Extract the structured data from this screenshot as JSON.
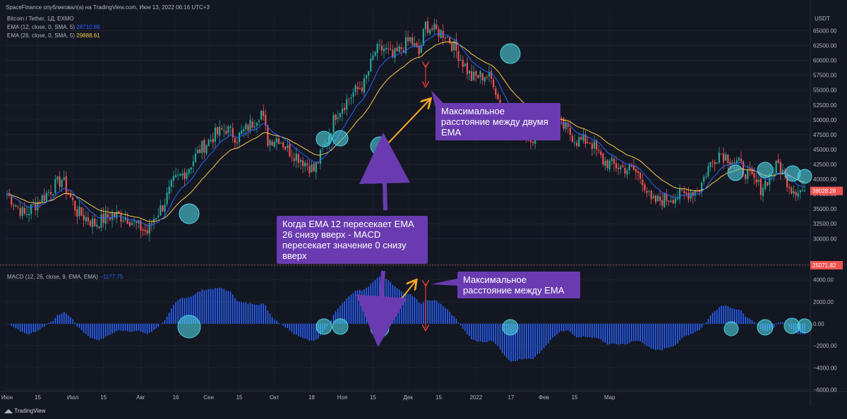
{
  "header": {
    "publisher": "SpaceFinance опубликовал(а) на TradingView.com, Июн 13, 2022 06:16 UTC+3",
    "symbol": "Bitcoin / Tether, 1Д, EXMO",
    "ema12_label": "EMA (12, close, 0, SMA, 5)",
    "ema12_value": "28710.86",
    "ema26_label": "EMA (26, close, 0, SMA, 5)",
    "ema26_value": "29888.61",
    "macd_label": "MACD (12, 26, close, 9, EMA, EMA)",
    "macd_value": "−1177.75"
  },
  "footer": {
    "logo_text": "TradingView"
  },
  "callouts": {
    "ema_cross": "Когда EMA 12 пересекает EMA 26 снизу вверх - MACD пересекает значение 0 снизу вверх",
    "max_distance_price": "Максимальное расстояние между двумя EMA",
    "max_distance_macd": "Максимальное расстояние между EMA"
  },
  "colors": {
    "background": "#131722",
    "up_candle": "#26a69a",
    "down_candle": "#ef5350",
    "ema12": "#2962ff",
    "ema26": "#f7c948",
    "macd_hist": "#2962ff",
    "callout": "#6a3bb0",
    "arrow": "#f5a623",
    "highlight": "#4fd1e0"
  },
  "chart_data": [
    {
      "type": "candlestick",
      "title": "Bitcoin / Tether, 1Д, EXMO",
      "currency": "USDT",
      "y_ticks": [
        30000,
        32500,
        35000,
        37500,
        40000,
        42500,
        45000,
        47500,
        50000,
        52500,
        55000,
        57500,
        60000,
        62500,
        65000
      ],
      "ylim": [
        26000,
        68500
      ],
      "x_ticks": [
        "Июн",
        "15",
        "Июл",
        "15",
        "Авг",
        "16",
        "Сен",
        "15",
        "Окт",
        "18",
        "Ноя",
        "15",
        "Дек",
        "15",
        "2022",
        "17",
        "Фев",
        "15",
        "Мар"
      ],
      "last_price_label": "38028.28",
      "crosshair_label": "25071.82",
      "close_anchors": [
        [
          0,
          37500
        ],
        [
          8,
          34000
        ],
        [
          15,
          36500
        ],
        [
          25,
          40000
        ],
        [
          32,
          34500
        ],
        [
          40,
          32500
        ],
        [
          48,
          34000
        ],
        [
          55,
          33500
        ],
        [
          60,
          32000
        ],
        [
          64,
          31000
        ],
        [
          67,
          33500
        ],
        [
          71,
          35500
        ],
        [
          76,
          39500
        ],
        [
          82,
          41500
        ],
        [
          88,
          45000
        ],
        [
          95,
          47500
        ],
        [
          100,
          48500
        ],
        [
          105,
          47000
        ],
        [
          112,
          49500
        ],
        [
          116,
          51500
        ],
        [
          119,
          46500
        ],
        [
          124,
          47000
        ],
        [
          128,
          45000
        ],
        [
          134,
          43500
        ],
        [
          140,
          41500
        ],
        [
          145,
          45500
        ],
        [
          150,
          51000
        ],
        [
          158,
          54500
        ],
        [
          163,
          56000
        ],
        [
          168,
          61500
        ],
        [
          172,
          62000
        ],
        [
          176,
          60500
        ],
        [
          184,
          63500
        ],
        [
          188,
          61000
        ],
        [
          191,
          66000
        ],
        [
          195,
          65000
        ],
        [
          200,
          64500
        ],
        [
          206,
          61000
        ],
        [
          212,
          57000
        ],
        [
          218,
          57500
        ],
        [
          222,
          56500
        ],
        [
          226,
          50500
        ],
        [
          230,
          49500
        ],
        [
          236,
          48500
        ],
        [
          240,
          47000
        ],
        [
          246,
          49500
        ],
        [
          250,
          50000
        ],
        [
          255,
          48500
        ],
        [
          260,
          46500
        ],
        [
          266,
          46500
        ],
        [
          272,
          43000
        ],
        [
          280,
          42000
        ],
        [
          286,
          41500
        ],
        [
          290,
          40000
        ],
        [
          294,
          36000
        ],
        [
          298,
          36500
        ],
        [
          304,
          37000
        ],
        [
          310,
          37500
        ],
        [
          316,
          38500
        ],
        [
          320,
          42000
        ],
        [
          325,
          44500
        ],
        [
          330,
          43500
        ],
        [
          334,
          42500
        ],
        [
          340,
          40000
        ],
        [
          344,
          38500
        ],
        [
          348,
          40500
        ],
        [
          352,
          42500
        ],
        [
          358,
          38500
        ],
        [
          364,
          38000
        ]
      ],
      "ema12_last": 28710.86,
      "ema26_last": 29888.61
    },
    {
      "type": "bar",
      "title": "MACD (12, 26, close, 9, EMA, EMA)",
      "y_ticks": [
        -6000,
        -4000,
        -2000,
        0,
        2000,
        4000
      ],
      "ylim": [
        -6100,
        5200
      ],
      "last_value": -1177.75
    }
  ]
}
